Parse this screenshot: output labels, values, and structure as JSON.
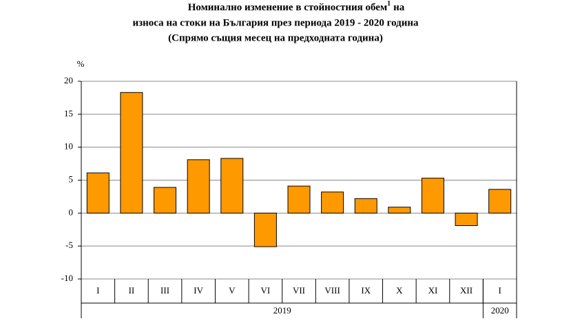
{
  "chart_data": {
    "type": "bar",
    "title": "Номинално изменение в стойностния обем",
    "title_note": "1",
    "title_end": "на",
    "subtitle": "износа на стоки на България през периода 2019 - 2020 година",
    "subtitle2": "(Спрямо същия месец на предходната година)",
    "y_label": "%",
    "categories": [
      "I",
      "II",
      "III",
      "IV",
      "V",
      "VI",
      "VII",
      "VIII",
      "IX",
      "X",
      "XI",
      "XII",
      "I"
    ],
    "values": [
      6.1,
      18.3,
      3.9,
      8.1,
      8.3,
      -5.1,
      4.1,
      3.2,
      2.2,
      0.9,
      5.3,
      -1.9,
      3.6
    ],
    "year_groups": [
      {
        "label": "2019",
        "count": 12
      },
      {
        "label": "2020",
        "count": 1
      }
    ],
    "color": "#ff9900",
    "ylim": [
      -10,
      20
    ],
    "yticks": [
      -10,
      -5,
      0,
      5,
      10,
      15,
      20
    ],
    "grid": true
  }
}
